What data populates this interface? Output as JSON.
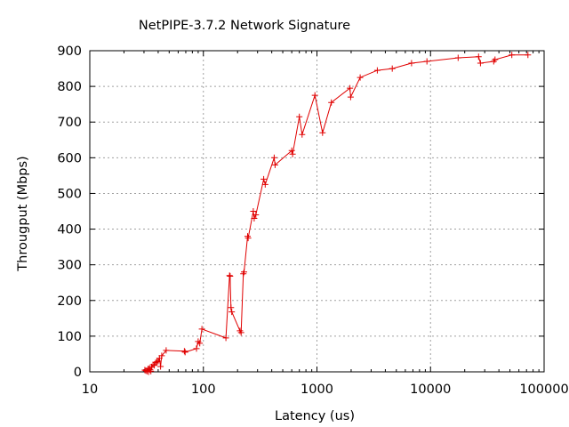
{
  "chart_data": {
    "type": "line",
    "title": "NetPIPE-3.7.2 Network Signature",
    "xlabel": "Latency (us)",
    "ylabel": "Througput (Mbps)",
    "x_scale": "log",
    "xlim": [
      10,
      100000
    ],
    "ylim": [
      0,
      900
    ],
    "x_ticks": [
      10,
      100,
      1000,
      10000,
      100000
    ],
    "x_tick_labels": [
      "10",
      "100",
      "1000",
      "10000",
      "100000"
    ],
    "y_ticks": [
      0,
      100,
      200,
      300,
      400,
      500,
      600,
      700,
      800,
      900
    ],
    "y_tick_labels": [
      "0",
      "100",
      "200",
      "300",
      "400",
      "500",
      "600",
      "700",
      "800",
      "900"
    ],
    "grid": true,
    "series_color": "#e00000",
    "points": [
      [
        30.5,
        5
      ],
      [
        31.2,
        3
      ],
      [
        32,
        2
      ],
      [
        32.5,
        8
      ],
      [
        33,
        0
      ],
      [
        33.5,
        10
      ],
      [
        34,
        6
      ],
      [
        34.5,
        2
      ],
      [
        35,
        14
      ],
      [
        36,
        20
      ],
      [
        37,
        18
      ],
      [
        38,
        26
      ],
      [
        39,
        28
      ],
      [
        40,
        30
      ],
      [
        41,
        38
      ],
      [
        42,
        15
      ],
      [
        43,
        45
      ],
      [
        47,
        60
      ],
      [
        68,
        58
      ],
      [
        69,
        55
      ],
      [
        87,
        65
      ],
      [
        90,
        85
      ],
      [
        93,
        80
      ],
      [
        97,
        120
      ],
      [
        158,
        95
      ],
      [
        170,
        270
      ],
      [
        172,
        268
      ],
      [
        175,
        180
      ],
      [
        178,
        168
      ],
      [
        210,
        115
      ],
      [
        215,
        110
      ],
      [
        225,
        275
      ],
      [
        228,
        280
      ],
      [
        245,
        380
      ],
      [
        248,
        375
      ],
      [
        275,
        450
      ],
      [
        280,
        430
      ],
      [
        290,
        440
      ],
      [
        340,
        540
      ],
      [
        350,
        525
      ],
      [
        420,
        600
      ],
      [
        428,
        580
      ],
      [
        600,
        620
      ],
      [
        610,
        610
      ],
      [
        700,
        715
      ],
      [
        740,
        665
      ],
      [
        960,
        775
      ],
      [
        1120,
        670
      ],
      [
        1340,
        755
      ],
      [
        1950,
        795
      ],
      [
        1980,
        770
      ],
      [
        2400,
        825
      ],
      [
        3400,
        845
      ],
      [
        4600,
        850
      ],
      [
        6800,
        865
      ],
      [
        9300,
        870
      ],
      [
        17500,
        880
      ],
      [
        26500,
        883
      ],
      [
        27500,
        865
      ],
      [
        36000,
        870
      ],
      [
        37000,
        875
      ],
      [
        52000,
        888
      ],
      [
        72000,
        888
      ]
    ]
  }
}
